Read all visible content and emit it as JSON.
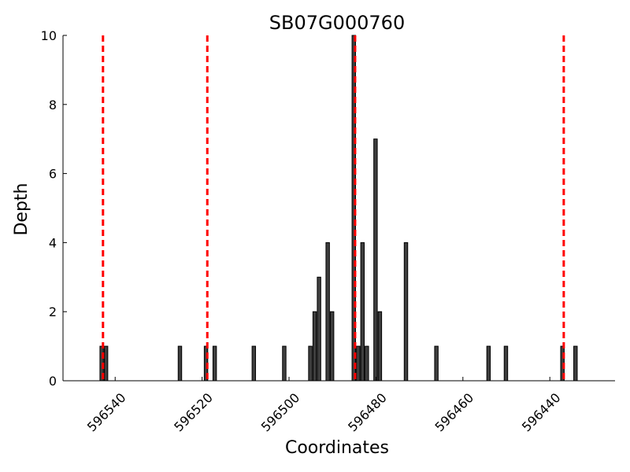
{
  "chart_data": {
    "type": "bar",
    "title": "SB07G000760",
    "xlabel": "Coordinates",
    "ylabel": "Depth",
    "xlim": [
      596552,
      596425
    ],
    "ylim": [
      0,
      10
    ],
    "x_reversed": true,
    "grid": false,
    "x_ticks": [
      596540,
      596520,
      596500,
      596480,
      596460,
      596440
    ],
    "y_ticks": [
      0,
      2,
      4,
      6,
      8,
      10
    ],
    "bar_color": "#3f3f3f",
    "bar_edge_color": "#000000",
    "vline_color": "#ff0000",
    "bars": [
      {
        "x": 596543,
        "y": 1
      },
      {
        "x": 596542,
        "y": 1
      },
      {
        "x": 596525,
        "y": 1
      },
      {
        "x": 596519,
        "y": 1
      },
      {
        "x": 596517,
        "y": 1
      },
      {
        "x": 596508,
        "y": 1
      },
      {
        "x": 596501,
        "y": 1
      },
      {
        "x": 596495,
        "y": 1
      },
      {
        "x": 596494,
        "y": 2
      },
      {
        "x": 596493,
        "y": 3
      },
      {
        "x": 596491,
        "y": 4
      },
      {
        "x": 596490,
        "y": 2
      },
      {
        "x": 596485,
        "y": 10
      },
      {
        "x": 596484,
        "y": 1
      },
      {
        "x": 596483,
        "y": 4
      },
      {
        "x": 596482,
        "y": 1
      },
      {
        "x": 596480,
        "y": 7
      },
      {
        "x": 596479,
        "y": 2
      },
      {
        "x": 596473,
        "y": 4
      },
      {
        "x": 596466,
        "y": 1
      },
      {
        "x": 596454,
        "y": 1
      },
      {
        "x": 596450,
        "y": 1
      },
      {
        "x": 596437,
        "y": 1
      },
      {
        "x": 596434,
        "y": 1
      }
    ],
    "vlines": [
      596542.8,
      596518.8,
      596484.8,
      596436.8
    ]
  }
}
